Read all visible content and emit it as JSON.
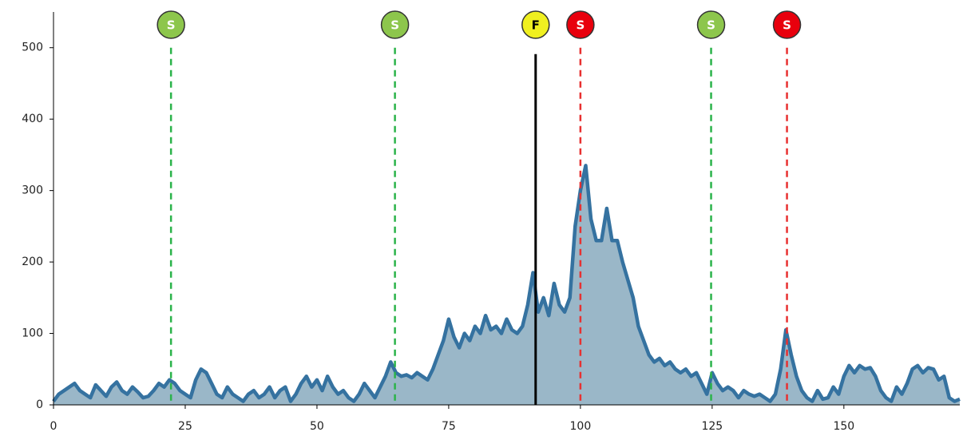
{
  "chart_data": {
    "type": "area",
    "x": [
      0,
      1,
      2,
      3,
      4,
      5,
      6,
      7,
      8,
      9,
      10,
      11,
      12,
      13,
      14,
      15,
      16,
      17,
      18,
      19,
      20,
      21,
      22,
      23,
      24,
      25,
      26,
      27,
      28,
      29,
      30,
      31,
      32,
      33,
      34,
      35,
      36,
      37,
      38,
      39,
      40,
      41,
      42,
      43,
      44,
      45,
      46,
      47,
      48,
      49,
      50,
      51,
      52,
      53,
      54,
      55,
      56,
      57,
      58,
      59,
      60,
      61,
      62,
      63,
      64,
      65,
      66,
      67,
      68,
      69,
      70,
      71,
      72,
      73,
      74,
      75,
      76,
      77,
      78,
      79,
      80,
      81,
      82,
      83,
      84,
      85,
      86,
      87,
      88,
      89,
      90,
      91,
      92,
      93,
      94,
      95,
      96,
      97,
      98,
      99,
      100,
      101,
      102,
      103,
      104,
      105,
      106,
      107,
      108,
      109,
      110,
      111,
      112,
      113,
      114,
      115,
      116,
      117,
      118,
      119,
      120,
      121,
      122,
      123,
      124,
      125,
      126,
      127,
      128,
      129,
      130,
      131,
      132,
      133,
      134,
      135,
      136,
      137,
      138,
      139,
      140,
      141,
      142,
      143,
      144,
      145,
      146,
      147,
      148,
      149,
      150,
      151,
      152,
      153,
      154,
      155,
      156,
      157,
      158,
      159,
      160,
      161,
      162,
      163,
      164,
      165,
      166,
      167,
      168,
      169,
      170,
      171,
      172
    ],
    "values": [
      5,
      15,
      20,
      25,
      30,
      20,
      15,
      10,
      28,
      20,
      12,
      25,
      32,
      20,
      15,
      25,
      18,
      10,
      12,
      20,
      30,
      25,
      35,
      30,
      20,
      15,
      10,
      35,
      50,
      45,
      30,
      15,
      10,
      25,
      15,
      10,
      5,
      15,
      20,
      10,
      15,
      25,
      10,
      20,
      25,
      5,
      15,
      30,
      40,
      25,
      35,
      20,
      40,
      25,
      15,
      20,
      10,
      5,
      15,
      30,
      20,
      10,
      25,
      40,
      60,
      45,
      40,
      42,
      38,
      45,
      40,
      35,
      50,
      70,
      90,
      120,
      95,
      80,
      100,
      90,
      110,
      100,
      125,
      105,
      110,
      100,
      120,
      105,
      100,
      110,
      140,
      185,
      130,
      150,
      125,
      170,
      140,
      130,
      150,
      250,
      300,
      335,
      260,
      230,
      230,
      275,
      230,
      230,
      200,
      175,
      150,
      110,
      90,
      70,
      60,
      65,
      55,
      60,
      50,
      45,
      50,
      40,
      45,
      30,
      15,
      45,
      30,
      20,
      25,
      20,
      10,
      20,
      15,
      12,
      15,
      10,
      5,
      15,
      50,
      105,
      70,
      40,
      20,
      10,
      5,
      20,
      8,
      10,
      25,
      15,
      40,
      55,
      45,
      55,
      50,
      52,
      40,
      20,
      10,
      5,
      25,
      15,
      30,
      50,
      55,
      45,
      52,
      50,
      35,
      40,
      10,
      5,
      8
    ],
    "line_color": "#3572a0",
    "fill_color": "#9ab7c8",
    "xlim": [
      0,
      172
    ],
    "ylim": [
      0,
      550
    ],
    "xticks": [
      0,
      25,
      50,
      75,
      100,
      125,
      150
    ],
    "yticks": [
      0,
      100,
      200,
      300,
      400,
      500
    ],
    "markers": [
      {
        "x": 22.3,
        "label": "S",
        "color": "#8dc64c",
        "line_color": "#2bb34a",
        "line_style": "dashed"
      },
      {
        "x": 64.8,
        "label": "S",
        "color": "#8dc64c",
        "line_color": "#2bb34a",
        "line_style": "dashed"
      },
      {
        "x": 91.5,
        "label": "F",
        "color": "#f0f020",
        "line_color": "#000000",
        "line_style": "solid"
      },
      {
        "x": 100,
        "label": "S",
        "color": "#e8000d",
        "line_color": "#e83030",
        "line_style": "dashed"
      },
      {
        "x": 124.8,
        "label": "S",
        "color": "#8dc64c",
        "line_color": "#2bb34a",
        "line_style": "dashed"
      },
      {
        "x": 139.2,
        "label": "S",
        "color": "#e8000d",
        "line_color": "#e83030",
        "line_style": "dashed"
      }
    ]
  }
}
